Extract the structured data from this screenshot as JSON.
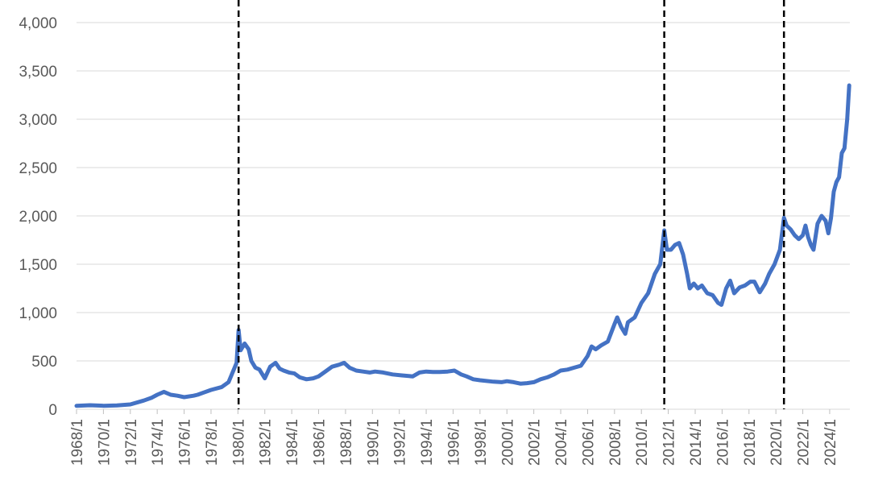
{
  "chart_data": {
    "type": "line",
    "title": "",
    "xlabel": "",
    "ylabel": "",
    "ylim": [
      0,
      4000
    ],
    "y_ticks": [
      0,
      500,
      1000,
      1500,
      2000,
      2500,
      3000,
      3500,
      4000
    ],
    "y_tick_labels": [
      "0",
      "500",
      "1,000",
      "1,500",
      "2,000",
      "2,500",
      "3,000",
      "3,500",
      "4,000"
    ],
    "x_range": [
      1968.0,
      2025.5
    ],
    "x_ticks": [
      1968,
      1970,
      1972,
      1974,
      1976,
      1978,
      1980,
      1982,
      1984,
      1986,
      1988,
      1990,
      1992,
      1994,
      1996,
      1998,
      2000,
      2002,
      2004,
      2006,
      2008,
      2010,
      2012,
      2014,
      2016,
      2018,
      2020,
      2022,
      2024
    ],
    "x_tick_labels": [
      "1968/1",
      "1970/1",
      "1972/1",
      "1974/1",
      "1976/1",
      "1978/1",
      "1980/1",
      "1982/1",
      "1984/1",
      "1986/1",
      "1988/1",
      "1990/1",
      "1992/1",
      "1994/1",
      "1996/1",
      "1998/1",
      "2000/1",
      "2002/1",
      "2004/1",
      "2006/1",
      "2008/1",
      "2010/1",
      "2012/1",
      "2014/1",
      "2016/1",
      "2018/1",
      "2020/1",
      "2022/1",
      "2024/1"
    ],
    "grid": true,
    "legend": "none",
    "vertical_markers": [
      1980.05,
      2011.7,
      2020.6
    ],
    "colors": {
      "series": "#4472c4",
      "marker": "#000000",
      "grid": "#d9d9d9",
      "tick_text": "#595959"
    },
    "series": [
      {
        "x": [
          1968.0,
          1969.0,
          1970.0,
          1971.0,
          1972.0,
          1973.0,
          1973.6,
          1974.0,
          1974.5,
          1975.0,
          1975.5,
          1976.0,
          1976.7,
          1977.0,
          1978.0,
          1978.8,
          1979.3,
          1979.6,
          1979.9,
          1980.05,
          1980.2,
          1980.5,
          1980.8,
          1981.0,
          1981.3,
          1981.6,
          1982.0,
          1982.4,
          1982.8,
          1983.1,
          1983.4,
          1983.8,
          1984.2,
          1984.6,
          1985.1,
          1985.6,
          1986.0,
          1986.5,
          1987.0,
          1987.5,
          1987.9,
          1988.3,
          1988.8,
          1989.3,
          1989.8,
          1990.2,
          1990.8,
          1991.5,
          1992.2,
          1993.0,
          1993.5,
          1994.0,
          1994.5,
          1995.0,
          1995.6,
          1996.1,
          1996.6,
          1997.0,
          1997.5,
          1998.0,
          1999.0,
          1999.6,
          2000.0,
          2000.5,
          2001.0,
          2001.5,
          2002.0,
          2002.5,
          2003.0,
          2003.5,
          2004.0,
          2004.5,
          2005.0,
          2005.5,
          2006.0,
          2006.3,
          2006.6,
          2007.0,
          2007.5,
          2008.0,
          2008.2,
          2008.5,
          2008.8,
          2009.0,
          2009.5,
          2010.0,
          2010.5,
          2011.0,
          2011.4,
          2011.7,
          2011.9,
          2012.2,
          2012.5,
          2012.8,
          2013.1,
          2013.4,
          2013.6,
          2013.9,
          2014.2,
          2014.5,
          2014.9,
          2015.3,
          2015.7,
          2015.95,
          2016.3,
          2016.6,
          2016.9,
          2017.3,
          2017.7,
          2018.1,
          2018.4,
          2018.8,
          2019.2,
          2019.5,
          2019.9,
          2020.3,
          2020.6,
          2020.8,
          2021.1,
          2021.4,
          2021.7,
          2022.0,
          2022.2,
          2022.4,
          2022.6,
          2022.8,
          2023.1,
          2023.4,
          2023.7,
          2023.9,
          2024.1,
          2024.3,
          2024.5,
          2024.7,
          2024.9,
          2025.1,
          2025.3,
          2025.45
        ],
        "values": [
          35,
          42,
          36,
          40,
          50,
          90,
          120,
          150,
          180,
          150,
          140,
          125,
          140,
          150,
          200,
          230,
          280,
          380,
          480,
          820,
          610,
          680,
          620,
          500,
          430,
          410,
          320,
          440,
          480,
          420,
          400,
          380,
          370,
          330,
          310,
          320,
          340,
          390,
          440,
          460,
          480,
          430,
          400,
          390,
          380,
          390,
          380,
          360,
          350,
          340,
          380,
          390,
          385,
          385,
          390,
          400,
          360,
          340,
          310,
          300,
          285,
          280,
          290,
          280,
          265,
          270,
          280,
          310,
          330,
          360,
          400,
          410,
          430,
          450,
          550,
          650,
          620,
          660,
          700,
          880,
          950,
          850,
          780,
          900,
          950,
          1100,
          1200,
          1400,
          1500,
          1850,
          1650,
          1650,
          1700,
          1720,
          1600,
          1400,
          1250,
          1300,
          1250,
          1280,
          1200,
          1180,
          1100,
          1080,
          1250,
          1330,
          1200,
          1260,
          1280,
          1320,
          1320,
          1210,
          1300,
          1400,
          1500,
          1650,
          1980,
          1900,
          1860,
          1800,
          1760,
          1800,
          1900,
          1780,
          1700,
          1650,
          1920,
          2000,
          1950,
          1820,
          1980,
          2250,
          2350,
          2400,
          2650,
          2700,
          3000,
          3350
        ]
      }
    ]
  }
}
